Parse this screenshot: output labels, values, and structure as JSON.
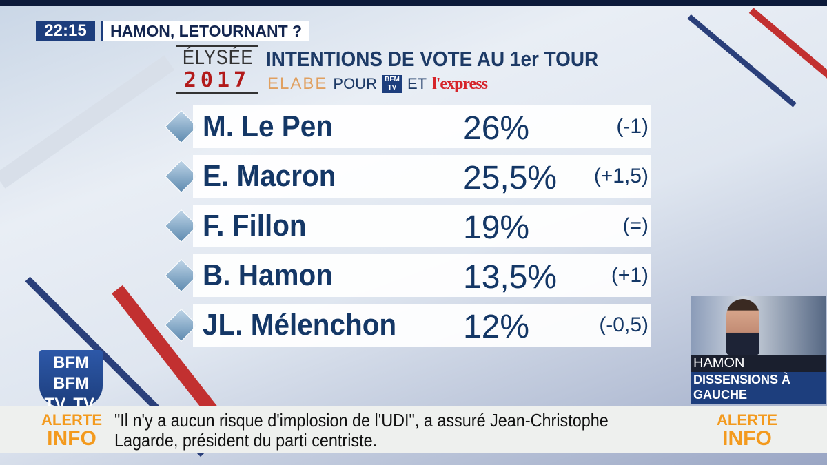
{
  "header": {
    "time": "22:15",
    "headline": "HAMON, LETOURNANT ?"
  },
  "graphic": {
    "brand_top": "ÉLYSÉE",
    "brand_year": "2017",
    "title": "INTENTIONS DE VOTE AU 1er TOUR",
    "source": {
      "pollster": "ELABE",
      "pour": "POUR",
      "bfm": "BFM TV",
      "et": "ET",
      "express": "l'express"
    },
    "rows": [
      {
        "name": "M. Le Pen",
        "percent": "26%",
        "change": "(-1)"
      },
      {
        "name": "E. Macron",
        "percent": "25,5%",
        "change": "(+1,5)"
      },
      {
        "name": "F. Fillon",
        "percent": "19%",
        "change": "(=)"
      },
      {
        "name": "B. Hamon",
        "percent": "13,5%",
        "change": "(+1)"
      },
      {
        "name": "JL. Mélenchon",
        "percent": "12%",
        "change": "(-0,5)"
      }
    ]
  },
  "logo": {
    "line1": "BFM BFM",
    "line2": "TV. TV."
  },
  "inset": {
    "name": "HAMON",
    "caption": "DISSENSIONS À GAUCHE"
  },
  "ticker": {
    "label_top": "ALERTE",
    "label_bottom": "INFO",
    "line1": "\"Il n'y a aucun risque d'implosion de l'UDI\", a assuré Jean-Christophe",
    "line2": "Lagarde, président du parti centriste."
  },
  "colors": {
    "navy": "#1d3e7d",
    "text": "#143766",
    "red": "#b21a1a",
    "orange": "#f39a1e"
  }
}
